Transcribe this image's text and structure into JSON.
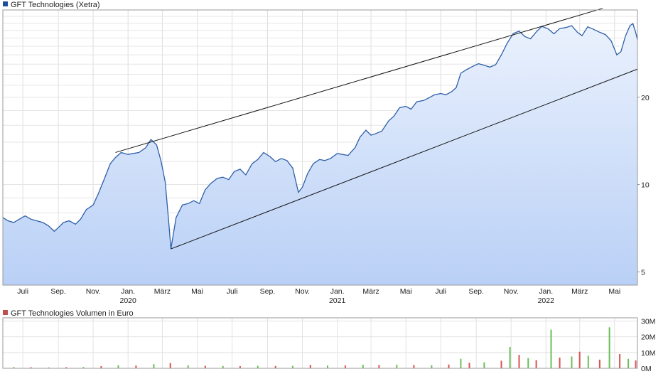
{
  "charts": {
    "price": {
      "legend_label": "GFT Technologies (Xetra)",
      "legend_color": "#1f4e9c",
      "line_color": "#2e5fa8",
      "fill_top": "#eaf1fd",
      "fill_bottom": "#b9d0f6"
    },
    "volume": {
      "legend_label": "GFT Technologies Volumen in Euro",
      "legend_color": "#c0504d"
    }
  },
  "chart_data": [
    {
      "type": "line",
      "title": "GFT Technologies (Xetra)",
      "y_scale": "log",
      "ylim": [
        4.5,
        40
      ],
      "y_ticks": [
        5,
        10,
        20
      ],
      "y_tick_labels": [
        "5",
        "10",
        "20"
      ],
      "x_range": [
        "2019-05-27",
        "2022-06-10"
      ],
      "x_ticks": [
        {
          "date": "2019-07-01",
          "label": "Juli"
        },
        {
          "date": "2019-09-01",
          "label": "Sep."
        },
        {
          "date": "2019-11-01",
          "label": "Nov."
        },
        {
          "date": "2020-01-01",
          "label": "Jan.",
          "year": "2020"
        },
        {
          "date": "2020-03-01",
          "label": "März"
        },
        {
          "date": "2020-05-01",
          "label": "Mai"
        },
        {
          "date": "2020-07-01",
          "label": "Juli"
        },
        {
          "date": "2020-09-01",
          "label": "Sep."
        },
        {
          "date": "2020-11-01",
          "label": "Nov."
        },
        {
          "date": "2021-01-01",
          "label": "Jan.",
          "year": "2021"
        },
        {
          "date": "2021-03-01",
          "label": "März"
        },
        {
          "date": "2021-05-01",
          "label": "Mai"
        },
        {
          "date": "2021-07-01",
          "label": "Juli"
        },
        {
          "date": "2021-09-01",
          "label": "Sep."
        },
        {
          "date": "2021-11-01",
          "label": "Nov."
        },
        {
          "date": "2022-01-01",
          "label": "Jan.",
          "year": "2022"
        },
        {
          "date": "2022-03-01",
          "label": "März"
        },
        {
          "date": "2022-05-01",
          "label": "Mai"
        }
      ],
      "series": [
        {
          "points": [
            [
              "2019-05-27",
              7.7
            ],
            [
              "2019-06-05",
              7.5
            ],
            [
              "2019-06-15",
              7.4
            ],
            [
              "2019-06-25",
              7.6
            ],
            [
              "2019-07-05",
              7.8
            ],
            [
              "2019-07-15",
              7.6
            ],
            [
              "2019-07-25",
              7.5
            ],
            [
              "2019-08-05",
              7.4
            ],
            [
              "2019-08-15",
              7.2
            ],
            [
              "2019-08-25",
              6.9
            ],
            [
              "2019-09-01",
              7.1
            ],
            [
              "2019-09-10",
              7.4
            ],
            [
              "2019-09-20",
              7.5
            ],
            [
              "2019-10-01",
              7.3
            ],
            [
              "2019-10-10",
              7.6
            ],
            [
              "2019-10-20",
              8.2
            ],
            [
              "2019-11-01",
              8.5
            ],
            [
              "2019-11-10",
              9.3
            ],
            [
              "2019-11-20",
              10.4
            ],
            [
              "2019-12-01",
              11.8
            ],
            [
              "2019-12-10",
              12.4
            ],
            [
              "2019-12-20",
              12.9
            ],
            [
              "2020-01-01",
              12.7
            ],
            [
              "2020-01-10",
              12.8
            ],
            [
              "2020-01-20",
              12.9
            ],
            [
              "2020-02-01",
              13.4
            ],
            [
              "2020-02-10",
              14.3
            ],
            [
              "2020-02-20",
              13.7
            ],
            [
              "2020-02-28",
              12.0
            ],
            [
              "2020-03-06",
              10.2
            ],
            [
              "2020-03-12",
              7.5
            ],
            [
              "2020-03-16",
              6.0
            ],
            [
              "2020-03-25",
              7.7
            ],
            [
              "2020-04-05",
              8.5
            ],
            [
              "2020-04-15",
              8.6
            ],
            [
              "2020-04-25",
              8.8
            ],
            [
              "2020-05-05",
              8.6
            ],
            [
              "2020-05-15",
              9.6
            ],
            [
              "2020-05-25",
              10.1
            ],
            [
              "2020-06-05",
              10.5
            ],
            [
              "2020-06-15",
              10.6
            ],
            [
              "2020-06-25",
              10.4
            ],
            [
              "2020-07-05",
              11.1
            ],
            [
              "2020-07-15",
              11.3
            ],
            [
              "2020-07-25",
              10.8
            ],
            [
              "2020-08-05",
              11.8
            ],
            [
              "2020-08-15",
              12.2
            ],
            [
              "2020-08-25",
              12.9
            ],
            [
              "2020-09-05",
              12.5
            ],
            [
              "2020-09-15",
              12.0
            ],
            [
              "2020-09-25",
              12.3
            ],
            [
              "2020-10-05",
              12.1
            ],
            [
              "2020-10-15",
              11.4
            ],
            [
              "2020-10-25",
              9.4
            ],
            [
              "2020-11-01",
              9.8
            ],
            [
              "2020-11-10",
              10.9
            ],
            [
              "2020-11-20",
              11.8
            ],
            [
              "2020-12-01",
              12.2
            ],
            [
              "2020-12-10",
              12.1
            ],
            [
              "2020-12-20",
              12.3
            ],
            [
              "2021-01-01",
              12.8
            ],
            [
              "2021-01-10",
              12.7
            ],
            [
              "2021-01-20",
              12.6
            ],
            [
              "2021-02-01",
              13.4
            ],
            [
              "2021-02-10",
              14.6
            ],
            [
              "2021-02-20",
              15.4
            ],
            [
              "2021-03-01",
              14.8
            ],
            [
              "2021-03-10",
              15.0
            ],
            [
              "2021-03-20",
              15.3
            ],
            [
              "2021-04-01",
              16.6
            ],
            [
              "2021-04-10",
              17.2
            ],
            [
              "2021-04-20",
              18.4
            ],
            [
              "2021-05-01",
              18.6
            ],
            [
              "2021-05-10",
              18.2
            ],
            [
              "2021-05-20",
              19.3
            ],
            [
              "2021-06-01",
              19.5
            ],
            [
              "2021-06-10",
              19.9
            ],
            [
              "2021-06-20",
              20.4
            ],
            [
              "2021-07-01",
              20.6
            ],
            [
              "2021-07-10",
              20.4
            ],
            [
              "2021-07-20",
              20.9
            ],
            [
              "2021-07-28",
              21.6
            ],
            [
              "2021-08-05",
              24.2
            ],
            [
              "2021-08-15",
              24.9
            ],
            [
              "2021-08-25",
              25.5
            ],
            [
              "2021-09-05",
              26.1
            ],
            [
              "2021-09-15",
              25.8
            ],
            [
              "2021-09-25",
              25.4
            ],
            [
              "2021-10-05",
              25.9
            ],
            [
              "2021-10-15",
              28.0
            ],
            [
              "2021-10-25",
              30.7
            ],
            [
              "2021-11-05",
              33.2
            ],
            [
              "2021-11-15",
              33.8
            ],
            [
              "2021-11-25",
              32.4
            ],
            [
              "2021-12-05",
              31.8
            ],
            [
              "2021-12-15",
              33.6
            ],
            [
              "2021-12-25",
              35.1
            ],
            [
              "2022-01-05",
              34.4
            ],
            [
              "2022-01-15",
              33.1
            ],
            [
              "2022-01-25",
              34.5
            ],
            [
              "2022-02-05",
              34.8
            ],
            [
              "2022-02-15",
              35.3
            ],
            [
              "2022-02-25",
              33.5
            ],
            [
              "2022-03-05",
              32.6
            ],
            [
              "2022-03-15",
              35.0
            ],
            [
              "2022-03-25",
              34.3
            ],
            [
              "2022-04-05",
              33.5
            ],
            [
              "2022-04-15",
              32.9
            ],
            [
              "2022-04-25",
              31.3
            ],
            [
              "2022-05-05",
              28.0
            ],
            [
              "2022-05-12",
              28.7
            ],
            [
              "2022-05-20",
              32.5
            ],
            [
              "2022-05-28",
              35.3
            ],
            [
              "2022-06-02",
              35.9
            ],
            [
              "2022-06-07",
              33.4
            ],
            [
              "2022-06-10",
              31.6
            ]
          ]
        }
      ],
      "trendlines": [
        {
          "from": [
            "2019-12-10",
            12.9
          ],
          "to": [
            "2022-04-10",
            40.5
          ]
        },
        {
          "from": [
            "2020-03-16",
            6.0
          ],
          "to": [
            "2022-06-10",
            25.0
          ]
        }
      ]
    },
    {
      "type": "bar",
      "title": "GFT Technologies Volumen in Euro",
      "ylim": [
        0,
        32000000
      ],
      "y_ticks": [
        0,
        10000000,
        20000000,
        30000000
      ],
      "y_tick_labels": [
        "0M",
        "10M",
        "20M",
        "30M"
      ],
      "series": [
        {
          "bars": [
            [
              "2019-06-15",
              0.8
            ],
            [
              "2019-07-15",
              0.7
            ],
            [
              "2019-08-15",
              0.6
            ],
            [
              "2019-09-15",
              0.7
            ],
            [
              "2019-10-15",
              0.8
            ],
            [
              "2019-11-15",
              1.4
            ],
            [
              "2019-12-15",
              2.0
            ],
            [
              "2020-01-15",
              1.8
            ],
            [
              "2020-02-15",
              2.6
            ],
            [
              "2020-03-15",
              3.4
            ],
            [
              "2020-04-15",
              2.0
            ],
            [
              "2020-05-15",
              1.6
            ],
            [
              "2020-06-15",
              1.5
            ],
            [
              "2020-07-15",
              1.4
            ],
            [
              "2020-08-15",
              1.6
            ],
            [
              "2020-09-15",
              1.5
            ],
            [
              "2020-10-15",
              1.6
            ],
            [
              "2020-11-15",
              2.2
            ],
            [
              "2020-12-15",
              1.8
            ],
            [
              "2021-01-15",
              1.9
            ],
            [
              "2021-02-15",
              2.2
            ],
            [
              "2021-03-15",
              2.1
            ],
            [
              "2021-04-15",
              2.3
            ],
            [
              "2021-05-15",
              2.1
            ],
            [
              "2021-06-15",
              2.0
            ],
            [
              "2021-07-15",
              2.4
            ],
            [
              "2021-08-05",
              6.0
            ],
            [
              "2021-08-20",
              3.5
            ],
            [
              "2021-09-15",
              3.8
            ],
            [
              "2021-10-15",
              4.8
            ],
            [
              "2021-10-30",
              13.5
            ],
            [
              "2021-11-15",
              8.5
            ],
            [
              "2021-12-01",
              6.5
            ],
            [
              "2021-12-15",
              5.2
            ],
            [
              "2022-01-10",
              24.5
            ],
            [
              "2022-01-25",
              6.8
            ],
            [
              "2022-02-15",
              7.5
            ],
            [
              "2022-03-01",
              10.5
            ],
            [
              "2022-03-16",
              8.0
            ],
            [
              "2022-04-05",
              5.5
            ],
            [
              "2022-04-22",
              26.0
            ],
            [
              "2022-05-10",
              9.0
            ],
            [
              "2022-05-25",
              6.0
            ],
            [
              "2022-06-07",
              5.0
            ]
          ]
        }
      ]
    }
  ]
}
